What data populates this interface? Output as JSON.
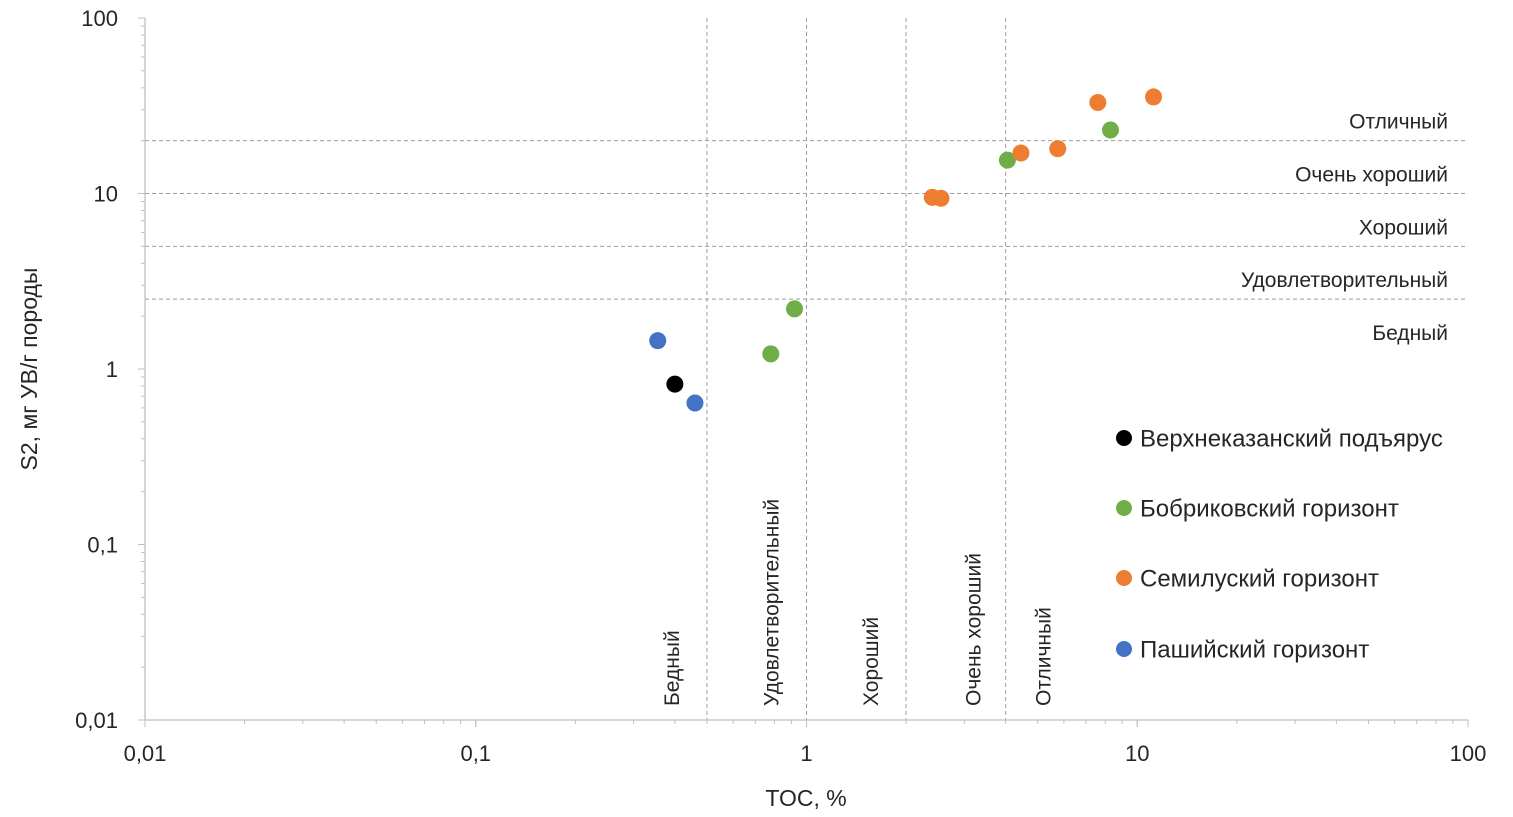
{
  "chart_data": {
    "type": "scatter",
    "title": "",
    "xlabel": "TOC, %",
    "ylabel": "S2, мг УВ/г породы",
    "x_scale": "log",
    "y_scale": "log",
    "xlim": [
      0.01,
      100
    ],
    "ylim": [
      0.01,
      100
    ],
    "grid": false,
    "legend_position": "right",
    "x_ticks": [
      {
        "value": 0.01,
        "label": "0,01"
      },
      {
        "value": 0.1,
        "label": "0,1"
      },
      {
        "value": 1,
        "label": "1"
      },
      {
        "value": 10,
        "label": "10"
      },
      {
        "value": 100,
        "label": "100"
      }
    ],
    "y_ticks": [
      {
        "value": 0.01,
        "label": "0,01"
      },
      {
        "value": 0.1,
        "label": "0,1"
      },
      {
        "value": 1,
        "label": "1"
      },
      {
        "value": 10,
        "label": "10"
      },
      {
        "value": 100,
        "label": "100"
      }
    ],
    "vertical_thresholds": [
      {
        "x": 0.5,
        "label": "Бедный"
      },
      {
        "x": 1,
        "label": "Удовлетворительный"
      },
      {
        "x": 2,
        "label": "Хороший"
      },
      {
        "x": 4,
        "label": "Очень хороший"
      },
      {
        "x": 4,
        "label": "Отличный"
      }
    ],
    "horizontal_thresholds": [
      2.5,
      5,
      10,
      20
    ],
    "horizontal_zone_labels": [
      {
        "y": 20,
        "label": "Отличный"
      },
      {
        "y": 10,
        "label": "Очень хороший"
      },
      {
        "y": 5,
        "label": "Хороший"
      },
      {
        "y": 2.5,
        "label": "Удовлетворительный"
      },
      {
        "y": 1.25,
        "label": "Бедный"
      }
    ],
    "series": [
      {
        "name": "Верхнеказанский подъярус",
        "color": "#000000",
        "points": [
          {
            "x": 0.4,
            "y": 0.82
          }
        ]
      },
      {
        "name": "Бобриковский горизонт",
        "color": "#70ad47",
        "points": [
          {
            "x": 0.78,
            "y": 1.22
          },
          {
            "x": 0.92,
            "y": 2.2
          },
          {
            "x": 4.05,
            "y": 15.5
          },
          {
            "x": 8.3,
            "y": 23
          }
        ]
      },
      {
        "name": "Семилуский горизонт",
        "color": "#ed7d31",
        "points": [
          {
            "x": 2.4,
            "y": 9.5
          },
          {
            "x": 2.55,
            "y": 9.4
          },
          {
            "x": 4.45,
            "y": 17
          },
          {
            "x": 5.75,
            "y": 18
          },
          {
            "x": 7.6,
            "y": 33
          },
          {
            "x": 11.2,
            "y": 35.5
          }
        ]
      },
      {
        "name": "Пашийский горизонт",
        "color": "#4472c4",
        "points": [
          {
            "x": 0.355,
            "y": 1.45
          },
          {
            "x": 0.46,
            "y": 0.64
          }
        ]
      }
    ]
  }
}
